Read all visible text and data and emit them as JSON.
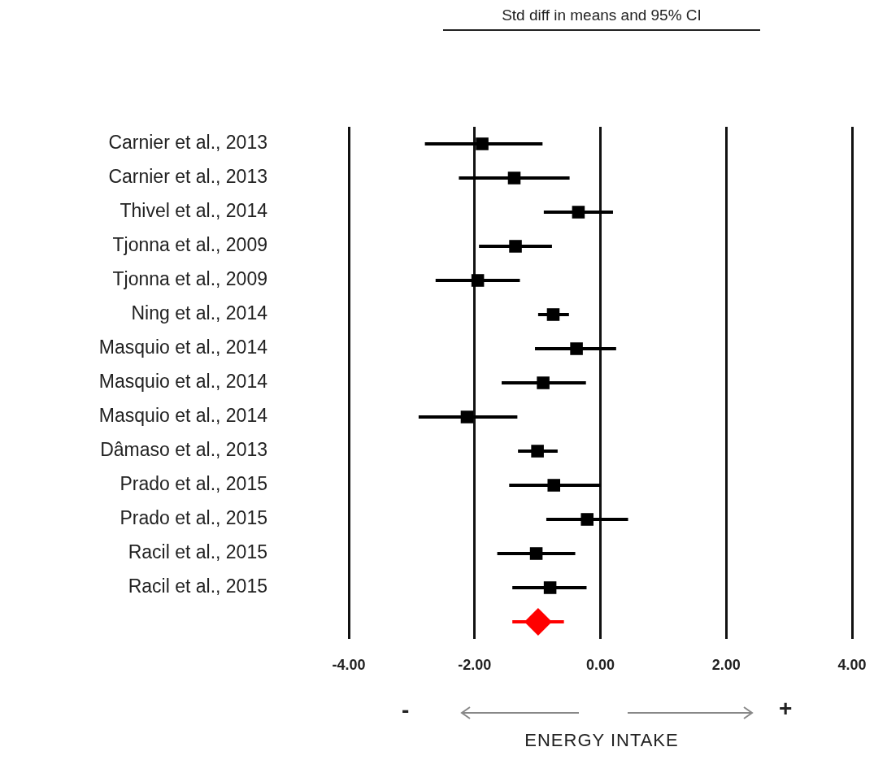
{
  "chart_data": {
    "type": "scatter",
    "title": "Std diff in means and 95% CI",
    "xlabel": "ENERGY INTAKE",
    "orientation": "horizontal",
    "grid": "x",
    "categories": [
      "Carnier et al., 2013",
      "Carnier et al., 2013",
      "Thivel et al., 2014",
      "Tjonna et al., 2009",
      "Tjonna et al., 2009",
      "Ning et al., 2014",
      "Masquio et al., 2014",
      "Masquio et al., 2014",
      "Masquio et al., 2014",
      "Dâmaso et al., 2013",
      "Prado et al., 2015",
      "Prado et al., 2015",
      "Racil et al., 2015",
      "Racil et al., 2015",
      null
    ],
    "xlim": [
      -4,
      4
    ],
    "xticks": [
      {
        "value": -4,
        "label": "-4.00"
      },
      {
        "value": -2,
        "label": "-2.00"
      },
      {
        "value": 0,
        "label": "0.00"
      },
      {
        "value": 2,
        "label": "2.00"
      },
      {
        "value": 4,
        "label": "4.00"
      }
    ],
    "series": [
      {
        "color": "#000000",
        "marker": "square",
        "values": [
          -1.88,
          -1.37,
          -0.35,
          -1.35,
          -1.95,
          -0.75,
          -0.38,
          -0.91,
          -2.12,
          -1.0,
          -0.74,
          -0.21,
          -1.02,
          -0.8,
          null
        ],
        "errors": [
          [
            -2.79,
            -0.92
          ],
          [
            -2.25,
            -0.49
          ],
          [
            -0.9,
            0.2
          ],
          [
            -1.93,
            -0.77
          ],
          [
            -2.62,
            -1.28
          ],
          [
            -0.99,
            -0.5
          ],
          [
            -1.04,
            0.25
          ],
          [
            -1.57,
            -0.23
          ],
          [
            -2.89,
            -1.32
          ],
          [
            -1.31,
            -0.68
          ],
          [
            -1.45,
            0.0
          ],
          [
            -0.86,
            0.44
          ],
          [
            -1.64,
            -0.4
          ],
          [
            -1.4,
            -0.22
          ],
          null
        ]
      },
      {
        "color": "#ff0000",
        "marker": "diamond",
        "values": [
          null,
          null,
          null,
          null,
          null,
          null,
          null,
          null,
          null,
          null,
          null,
          null,
          null,
          null,
          -0.99
        ],
        "errors": [
          null,
          null,
          null,
          null,
          null,
          null,
          null,
          null,
          null,
          null,
          null,
          null,
          null,
          null,
          [
            -1.4,
            -0.58
          ]
        ]
      }
    ],
    "annotations": [
      "-",
      "+"
    ]
  }
}
